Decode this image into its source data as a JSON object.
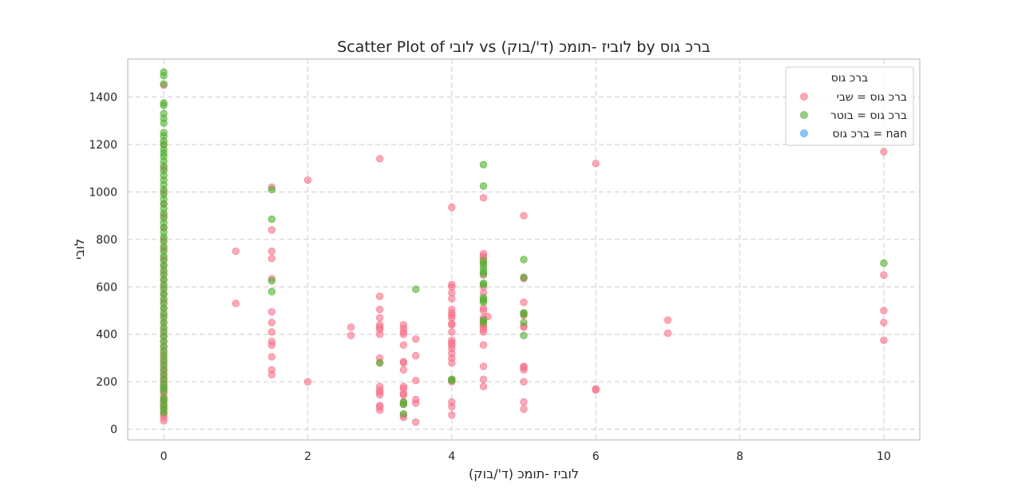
{
  "chart_data": {
    "type": "scatter",
    "title": "Scatter Plot of לובי vs לוביז -תומכ (ד'/בוק) by ברכ גוס",
    "xlabel": "לוביז -תומכ (ד'/בוק)",
    "ylabel": "לובי",
    "xlim": [
      -0.5,
      10.5
    ],
    "ylim": [
      -45,
      1560
    ],
    "xticks": [
      0,
      2,
      4,
      6,
      8,
      10
    ],
    "yticks": [
      0,
      200,
      400,
      600,
      800,
      1000,
      1200,
      1400
    ],
    "grid": true,
    "legend": {
      "title": "ברכ גוס",
      "placement": "top-right"
    },
    "series": [
      {
        "name": "ברכ גוס = שבי",
        "color": "#f77189",
        "points": [
          [
            0,
            35
          ],
          [
            0,
            50
          ],
          [
            0,
            60
          ],
          [
            0,
            70
          ],
          [
            0,
            85
          ],
          [
            0,
            95
          ],
          [
            0,
            105
          ],
          [
            0,
            115
          ],
          [
            0,
            125
          ],
          [
            0,
            140
          ],
          [
            0,
            155
          ],
          [
            0,
            170
          ],
          [
            0,
            185
          ],
          [
            0,
            200
          ],
          [
            0,
            215
          ],
          [
            0,
            230
          ],
          [
            0,
            245
          ],
          [
            0,
            260
          ],
          [
            0,
            280
          ],
          [
            0,
            300
          ],
          [
            0,
            320
          ],
          [
            0,
            345
          ],
          [
            0,
            370
          ],
          [
            0,
            395
          ],
          [
            0,
            420
          ],
          [
            0,
            450
          ],
          [
            0,
            480
          ],
          [
            0,
            510
          ],
          [
            0,
            540
          ],
          [
            0,
            570
          ],
          [
            0,
            600
          ],
          [
            0,
            630
          ],
          [
            0,
            660
          ],
          [
            0,
            690
          ],
          [
            0,
            720
          ],
          [
            0,
            760
          ],
          [
            0,
            800
          ],
          [
            0,
            850
          ],
          [
            0,
            900
          ],
          [
            0,
            950
          ],
          [
            0,
            1000
          ],
          [
            0,
            1100
          ],
          [
            0,
            1200
          ],
          [
            0,
            1450
          ],
          [
            1,
            750
          ],
          [
            1,
            530
          ],
          [
            1.5,
            1020
          ],
          [
            1.5,
            840
          ],
          [
            1.5,
            750
          ],
          [
            1.5,
            720
          ],
          [
            1.5,
            635
          ],
          [
            1.5,
            495
          ],
          [
            1.5,
            450
          ],
          [
            1.5,
            410
          ],
          [
            1.5,
            370
          ],
          [
            1.5,
            355
          ],
          [
            1.5,
            305
          ],
          [
            1.5,
            250
          ],
          [
            1.5,
            230
          ],
          [
            2,
            1050
          ],
          [
            2,
            200
          ],
          [
            2.6,
            430
          ],
          [
            2.6,
            395
          ],
          [
            3,
            1140
          ],
          [
            3,
            560
          ],
          [
            3,
            505
          ],
          [
            3,
            470
          ],
          [
            3,
            440
          ],
          [
            3,
            430
          ],
          [
            3,
            420
          ],
          [
            3,
            400
          ],
          [
            3,
            300
          ],
          [
            3,
            280
          ],
          [
            3,
            180
          ],
          [
            3,
            165
          ],
          [
            3,
            155
          ],
          [
            3,
            145
          ],
          [
            3,
            100
          ],
          [
            3,
            95
          ],
          [
            3,
            80
          ],
          [
            3.33,
            440
          ],
          [
            3.33,
            425
          ],
          [
            3.33,
            410
          ],
          [
            3.33,
            400
          ],
          [
            3.33,
            355
          ],
          [
            3.33,
            285
          ],
          [
            3.33,
            280
          ],
          [
            3.33,
            250
          ],
          [
            3.33,
            180
          ],
          [
            3.33,
            170
          ],
          [
            3.33,
            150
          ],
          [
            3.33,
            145
          ],
          [
            3.33,
            115
          ],
          [
            3.33,
            105
          ],
          [
            3.33,
            60
          ],
          [
            3.33,
            50
          ],
          [
            3.5,
            380
          ],
          [
            3.5,
            310
          ],
          [
            3.5,
            205
          ],
          [
            3.5,
            125
          ],
          [
            3.5,
            110
          ],
          [
            3.5,
            30
          ],
          [
            4,
            935
          ],
          [
            4,
            610
          ],
          [
            4,
            600
          ],
          [
            4,
            575
          ],
          [
            4,
            550
          ],
          [
            4,
            505
          ],
          [
            4,
            490
          ],
          [
            4,
            480
          ],
          [
            4,
            470
          ],
          [
            4,
            445
          ],
          [
            4,
            440
          ],
          [
            4,
            410
          ],
          [
            4,
            375
          ],
          [
            4,
            365
          ],
          [
            4,
            355
          ],
          [
            4,
            340
          ],
          [
            4,
            320
          ],
          [
            4,
            300
          ],
          [
            4,
            280
          ],
          [
            4,
            210
          ],
          [
            4,
            200
          ],
          [
            4,
            115
          ],
          [
            4,
            95
          ],
          [
            4,
            60
          ],
          [
            4.44,
            975
          ],
          [
            4.44,
            740
          ],
          [
            4.44,
            730
          ],
          [
            4.44,
            720
          ],
          [
            4.44,
            700
          ],
          [
            4.44,
            650
          ],
          [
            4.44,
            600
          ],
          [
            4.44,
            575
          ],
          [
            4.44,
            545
          ],
          [
            4.44,
            510
          ],
          [
            4.44,
            500
          ],
          [
            4.44,
            470
          ],
          [
            4.44,
            460
          ],
          [
            4.44,
            445
          ],
          [
            4.44,
            440
          ],
          [
            4.44,
            430
          ],
          [
            4.44,
            420
          ],
          [
            4.44,
            410
          ],
          [
            4.44,
            355
          ],
          [
            4.44,
            265
          ],
          [
            4.44,
            210
          ],
          [
            4.44,
            180
          ],
          [
            4.5,
            475
          ],
          [
            5,
            900
          ],
          [
            5,
            640
          ],
          [
            5,
            635
          ],
          [
            5,
            535
          ],
          [
            5,
            490
          ],
          [
            5,
            480
          ],
          [
            5,
            435
          ],
          [
            5,
            430
          ],
          [
            5,
            265
          ],
          [
            5,
            260
          ],
          [
            5,
            250
          ],
          [
            5,
            200
          ],
          [
            5,
            115
          ],
          [
            5,
            85
          ],
          [
            6,
            1120
          ],
          [
            6,
            170
          ],
          [
            6,
            165
          ],
          [
            7,
            460
          ],
          [
            7,
            405
          ],
          [
            10,
            1170
          ],
          [
            10,
            650
          ],
          [
            10,
            500
          ],
          [
            10,
            450
          ],
          [
            10,
            375
          ]
        ]
      },
      {
        "name": "ברכ גוס = בוטר",
        "color": "#50b131",
        "points": [
          [
            0,
            1505
          ],
          [
            0,
            1490
          ],
          [
            0,
            1455
          ],
          [
            0,
            1375
          ],
          [
            0,
            1365
          ],
          [
            0,
            1330
          ],
          [
            0,
            1310
          ],
          [
            0,
            1290
          ],
          [
            0,
            1250
          ],
          [
            0,
            1235
          ],
          [
            0,
            1215
          ],
          [
            0,
            1200
          ],
          [
            0,
            1180
          ],
          [
            0,
            1165
          ],
          [
            0,
            1150
          ],
          [
            0,
            1130
          ],
          [
            0,
            1110
          ],
          [
            0,
            1090
          ],
          [
            0,
            1070
          ],
          [
            0,
            1050
          ],
          [
            0,
            1030
          ],
          [
            0,
            1010
          ],
          [
            0,
            990
          ],
          [
            0,
            970
          ],
          [
            0,
            950
          ],
          [
            0,
            930
          ],
          [
            0,
            910
          ],
          [
            0,
            890
          ],
          [
            0,
            870
          ],
          [
            0,
            850
          ],
          [
            0,
            830
          ],
          [
            0,
            810
          ],
          [
            0,
            790
          ],
          [
            0,
            770
          ],
          [
            0,
            750
          ],
          [
            0,
            730
          ],
          [
            0,
            710
          ],
          [
            0,
            690
          ],
          [
            0,
            670
          ],
          [
            0,
            650
          ],
          [
            0,
            630
          ],
          [
            0,
            610
          ],
          [
            0,
            590
          ],
          [
            0,
            570
          ],
          [
            0,
            550
          ],
          [
            0,
            530
          ],
          [
            0,
            510
          ],
          [
            0,
            490
          ],
          [
            0,
            470
          ],
          [
            0,
            450
          ],
          [
            0,
            430
          ],
          [
            0,
            410
          ],
          [
            0,
            390
          ],
          [
            0,
            370
          ],
          [
            0,
            350
          ],
          [
            0,
            330
          ],
          [
            0,
            310
          ],
          [
            0,
            290
          ],
          [
            0,
            270
          ],
          [
            0,
            250
          ],
          [
            0,
            230
          ],
          [
            0,
            210
          ],
          [
            0,
            190
          ],
          [
            0,
            175
          ],
          [
            0,
            160
          ],
          [
            0,
            130
          ],
          [
            0,
            120
          ],
          [
            0,
            100
          ],
          [
            0,
            85
          ],
          [
            0,
            70
          ],
          [
            1.5,
            1010
          ],
          [
            1.5,
            885
          ],
          [
            1.5,
            625
          ],
          [
            1.5,
            580
          ],
          [
            3,
            280
          ],
          [
            3.33,
            115
          ],
          [
            3.33,
            105
          ],
          [
            3.33,
            65
          ],
          [
            3.5,
            590
          ],
          [
            4,
            210
          ],
          [
            4,
            205
          ],
          [
            4.44,
            1115
          ],
          [
            4.44,
            1025
          ],
          [
            4.44,
            710
          ],
          [
            4.44,
            695
          ],
          [
            4.44,
            680
          ],
          [
            4.44,
            665
          ],
          [
            4.44,
            655
          ],
          [
            4.44,
            615
          ],
          [
            4.44,
            610
          ],
          [
            4.44,
            555
          ],
          [
            4.44,
            545
          ],
          [
            4.44,
            535
          ],
          [
            4.44,
            460
          ],
          [
            4.44,
            450
          ],
          [
            5,
            715
          ],
          [
            5,
            640
          ],
          [
            5,
            490
          ],
          [
            5,
            485
          ],
          [
            5,
            450
          ],
          [
            5,
            395
          ],
          [
            10,
            700
          ]
        ]
      },
      {
        "name": "ברכ גוס = nan",
        "color": "#3ba3ec",
        "points": []
      }
    ]
  }
}
